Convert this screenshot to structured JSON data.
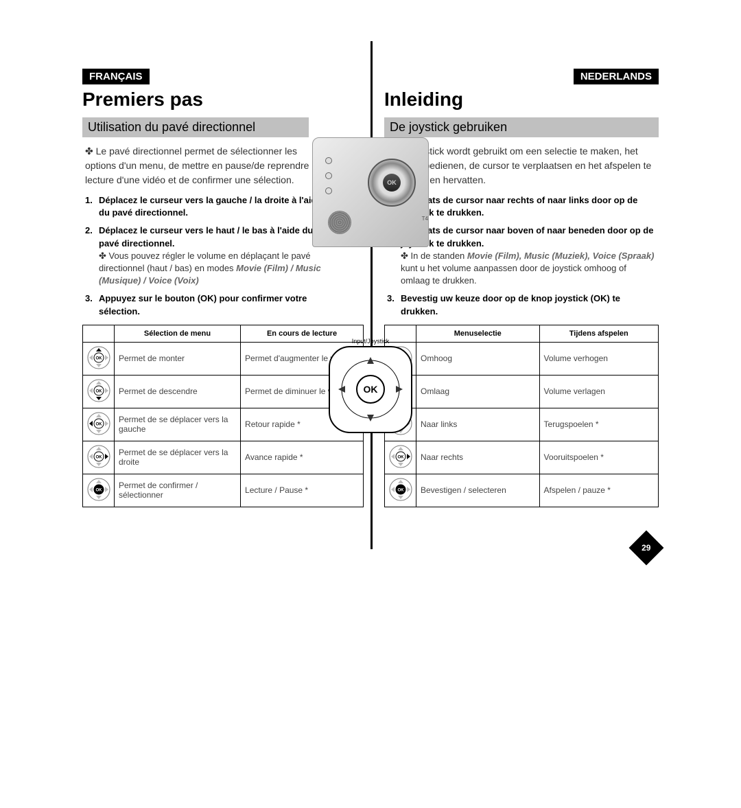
{
  "page_number": "29",
  "left": {
    "lang": "FRANÇAIS",
    "title": "Premiers pas",
    "subtitle": "Utilisation du pavé directionnel",
    "intro": "✤ Le pavé directionnel permet de sélectionner les options d'un menu, de mettre en pause/de reprendre la lecture d'une vidéo et de confirmer une sélection.",
    "step1": "Déplacez le curseur vers la gauche / la droite à l'aide du pavé directionnel.",
    "step2": "Déplacez le curseur vers le haut / le bas à l'aide du pavé directionnel.",
    "step2_note_a": "✤ Vous pouvez régler le volume en déplaçant le pavé directionnel (haut / bas) en modes ",
    "step2_note_b": "Movie (Film) / Music (Musique) / Voice (Voix)",
    "step3": "Appuyez sur le bouton (OK) pour confirmer votre sélection.",
    "table": {
      "headers": [
        "",
        "Sélection de menu",
        "En cours de lecture"
      ],
      "rows": [
        {
          "dir": "up",
          "c1": "Permet de monter",
          "c2": "Permet d'augmenter le volume"
        },
        {
          "dir": "down",
          "c1": "Permet de descendre",
          "c2": "Permet de diminuer le volume"
        },
        {
          "dir": "left",
          "c1": "Permet de se déplacer vers la gauche",
          "c2": "Retour rapide *"
        },
        {
          "dir": "right",
          "c1": "Permet de se déplacer vers la droite",
          "c2": "Avance rapide *"
        },
        {
          "dir": "ok",
          "c1": "Permet de confirmer / sélectionner",
          "c2": "Lecture / Pause *"
        }
      ]
    }
  },
  "right": {
    "lang": "NEDERLANDS",
    "title": "Inleiding",
    "subtitle": "De joystick gebruiken",
    "intro": "✤ De joystick wordt gebruikt om een selectie te maken, het menu te bedienen, de cursor te verplaatsen en het afspelen te pauzeren en hervatten.",
    "step1": "Verplaats de cursor naar rechts of naar links door op de joystick te drukken.",
    "step2": "Verplaats de cursor naar boven of naar beneden door op de joystick te drukken.",
    "step2_note_a": "✤ In de standen ",
    "step2_note_b": "Movie (Film), Music (Muziek), Voice (Spraak)",
    "step2_note_c": " kunt u het volume aanpassen door de joystick omhoog of omlaag te drukken.",
    "step3": "Bevestig uw keuze door op de knop joystick (OK) te drukken.",
    "table": {
      "headers": [
        "",
        "Menuselectie",
        "Tijdens afspelen"
      ],
      "rows": [
        {
          "dir": "up",
          "c1": "Omhoog",
          "c2": "Volume verhogen"
        },
        {
          "dir": "down",
          "c1": "Omlaag",
          "c2": "Volume verlagen"
        },
        {
          "dir": "left",
          "c1": "Naar links",
          "c2": "Terugspoelen *"
        },
        {
          "dir": "right",
          "c1": "Naar rechts",
          "c2": "Vooruitspoelen *"
        },
        {
          "dir": "ok",
          "c1": "Bevestigen / selecteren",
          "c2": "Afspelen / pauze *"
        }
      ]
    }
  },
  "diagram": {
    "ok_label": "OK",
    "caption_top": "Input/Joystick",
    "device_ok": "OK",
    "device_label": "T4"
  },
  "icons": {
    "up": "▲",
    "down": "▼",
    "left": "◀",
    "right": "▶"
  },
  "colors": {
    "tag_bg": "#000000",
    "tag_fg": "#ffffff",
    "subtitle_bg": "#c0c0c0",
    "border": "#000000",
    "italic": "#666666"
  }
}
